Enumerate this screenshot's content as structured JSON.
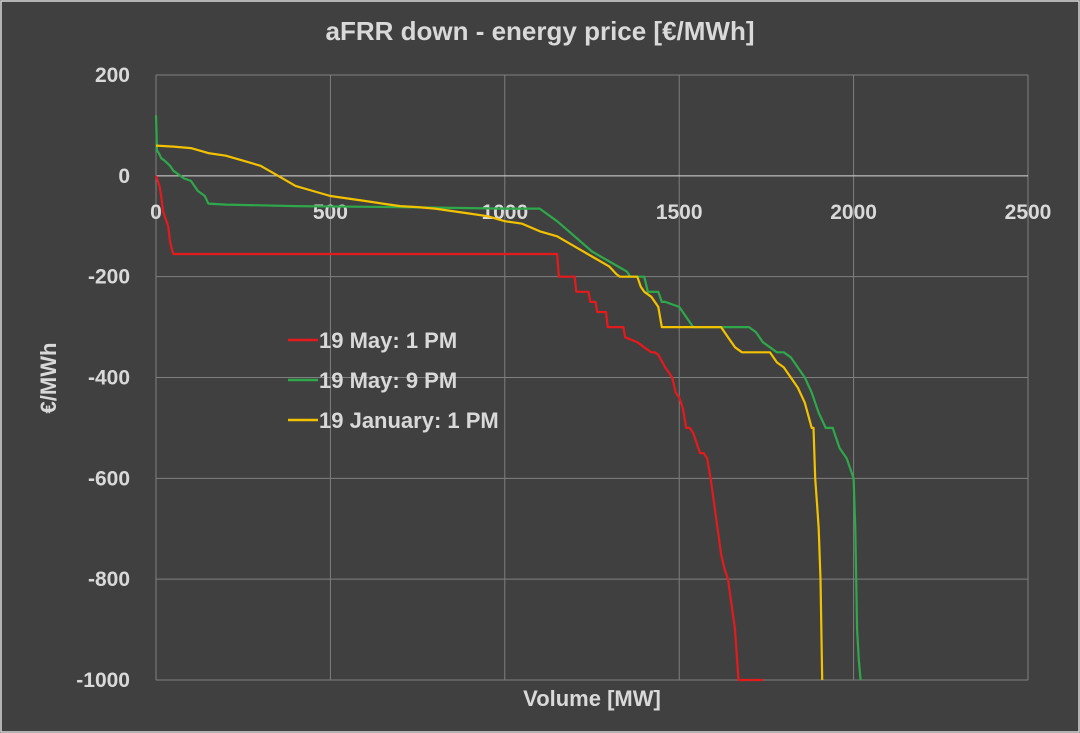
{
  "chart_data": {
    "type": "line",
    "title": "aFRR down - energy price [€/MWh]",
    "xlabel": "Volume [MW]",
    "ylabel": "€/MWh",
    "xlim": [
      0,
      2500
    ],
    "ylim": [
      -1000,
      200
    ],
    "x_ticks": [
      0,
      500,
      1000,
      1500,
      2000,
      2500
    ],
    "y_ticks": [
      200,
      0,
      -200,
      -400,
      -600,
      -800,
      -1000
    ],
    "x_tick_labels": [
      "0",
      "500",
      "1000",
      "1500",
      "2000",
      "2500"
    ],
    "y_tick_labels": [
      "200",
      "0",
      "-200",
      "-400",
      "-600",
      "-800",
      "-1000"
    ],
    "grid": true,
    "legend_position": "center-left",
    "series": [
      {
        "name": "19 May: 1 PM",
        "color": "#e41a1c",
        "x": [
          0,
          5,
          10,
          15,
          20,
          25,
          30,
          35,
          40,
          45,
          50,
          200,
          600,
          1000,
          1150,
          1155,
          1200,
          1205,
          1240,
          1245,
          1260,
          1265,
          1290,
          1295,
          1310,
          1330,
          1340,
          1345,
          1380,
          1400,
          1410,
          1420,
          1430,
          1440,
          1460,
          1480,
          1490,
          1500,
          1510,
          1520,
          1530,
          1540,
          1550,
          1560,
          1570,
          1580,
          1590,
          1600,
          1610,
          1620,
          1630,
          1640,
          1650,
          1660,
          1670,
          1680,
          1690,
          1700,
          1705,
          1710,
          1715,
          1720,
          1725,
          1735,
          1740
        ],
        "y": [
          0,
          -10,
          -20,
          -40,
          -70,
          -80,
          -90,
          -100,
          -130,
          -145,
          -155,
          -155,
          -155,
          -155,
          -155,
          -200,
          -200,
          -230,
          -230,
          -250,
          -250,
          -270,
          -270,
          -300,
          -300,
          -300,
          -300,
          -320,
          -330,
          -340,
          -345,
          -350,
          -350,
          -355,
          -380,
          -400,
          -430,
          -440,
          -460,
          -500,
          -500,
          -510,
          -530,
          -550,
          -550,
          -560,
          -600,
          -650,
          -700,
          -750,
          -780,
          -800,
          -850,
          -900,
          -1000,
          -1000,
          -1000,
          -1000,
          -1000,
          -1000,
          -1000,
          -1000,
          -1000,
          -1000,
          -1000
        ]
      },
      {
        "name": "19 May: 9 PM",
        "color": "#2ea84a",
        "x": [
          0,
          3,
          8,
          15,
          25,
          40,
          50,
          60,
          80,
          100,
          120,
          140,
          150,
          200,
          400,
          700,
          1000,
          1100,
          1150,
          1200,
          1250,
          1300,
          1350,
          1360,
          1400,
          1410,
          1440,
          1450,
          1460,
          1500,
          1520,
          1540,
          1560,
          1600,
          1700,
          1720,
          1740,
          1780,
          1800,
          1820,
          1840,
          1860,
          1880,
          1900,
          1920,
          1940,
          1960,
          1980,
          2000,
          2005,
          2010,
          2015,
          2020
        ],
        "y": [
          120,
          50,
          45,
          35,
          30,
          20,
          10,
          5,
          -5,
          -10,
          -30,
          -40,
          -55,
          -57,
          -60,
          -62,
          -65,
          -65,
          -90,
          -120,
          -150,
          -170,
          -190,
          -200,
          -200,
          -230,
          -230,
          -250,
          -250,
          -260,
          -280,
          -300,
          -300,
          -300,
          -300,
          -310,
          -330,
          -350,
          -350,
          -360,
          -380,
          -400,
          -430,
          -470,
          -500,
          -500,
          -540,
          -560,
          -600,
          -700,
          -900,
          -960,
          -1000
        ]
      },
      {
        "name": "19 January: 1 PM",
        "color": "#f2c100",
        "x": [
          0,
          50,
          100,
          150,
          200,
          250,
          300,
          350,
          400,
          450,
          500,
          550,
          600,
          650,
          700,
          750,
          800,
          850,
          900,
          950,
          1000,
          1050,
          1100,
          1150,
          1200,
          1250,
          1300,
          1320,
          1330,
          1340,
          1360,
          1380,
          1390,
          1400,
          1420,
          1440,
          1450,
          1500,
          1520,
          1540,
          1560,
          1580,
          1600,
          1620,
          1640,
          1660,
          1680,
          1700,
          1720,
          1740,
          1760,
          1780,
          1800,
          1820,
          1840,
          1860,
          1880,
          1885,
          1890,
          1895,
          1900,
          1905,
          1910
        ],
        "y": [
          60,
          58,
          55,
          45,
          40,
          30,
          20,
          0,
          -20,
          -30,
          -40,
          -45,
          -50,
          -55,
          -60,
          -62,
          -65,
          -70,
          -75,
          -80,
          -90,
          -95,
          -110,
          -120,
          -140,
          -160,
          -180,
          -195,
          -200,
          -200,
          -200,
          -200,
          -220,
          -230,
          -240,
          -260,
          -300,
          -300,
          -300,
          -300,
          -300,
          -300,
          -300,
          -300,
          -320,
          -340,
          -350,
          -350,
          -350,
          -350,
          -350,
          -370,
          -380,
          -400,
          -420,
          -450,
          -500,
          -500,
          -600,
          -650,
          -700,
          -800,
          -1000
        ]
      }
    ]
  }
}
